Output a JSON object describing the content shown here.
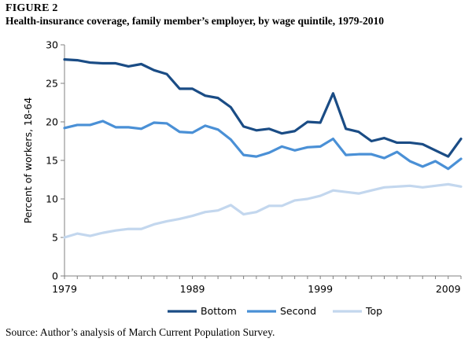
{
  "figure": {
    "label": "FIGURE 2",
    "title": "Health-insurance coverage, family member’s employer, by wage quintile, 1979-2010",
    "source": "Source: Author’s analysis of March Current Population Survey."
  },
  "chart_data": {
    "type": "line",
    "title": "",
    "xlabel": "",
    "ylabel": "Percent of workers, 18-64",
    "xlim": [
      1979,
      2010
    ],
    "ylim": [
      0,
      30
    ],
    "x_ticks": [
      "1979",
      "1989",
      "1999",
      "2009"
    ],
    "y_ticks": [
      "0",
      "5",
      "10",
      "15",
      "20",
      "25",
      "30"
    ],
    "grid": false,
    "legend_position": "bottom",
    "x": [
      1979,
      1980,
      1981,
      1982,
      1983,
      1984,
      1985,
      1986,
      1987,
      1988,
      1989,
      1990,
      1991,
      1992,
      1993,
      1994,
      1995,
      1996,
      1997,
      1998,
      1999,
      2000,
      2001,
      2002,
      2003,
      2004,
      2005,
      2006,
      2007,
      2008,
      2009,
      2010
    ],
    "series": [
      {
        "name": "Bottom",
        "color": "#1a4c85",
        "values": [
          28.1,
          28.0,
          27.7,
          27.6,
          27.6,
          27.2,
          27.5,
          26.7,
          26.2,
          24.3,
          24.3,
          23.4,
          23.1,
          21.9,
          19.4,
          18.9,
          19.1,
          18.5,
          18.8,
          20.0,
          19.9,
          23.7,
          19.1,
          18.7,
          17.5,
          17.9,
          17.3,
          17.3,
          17.1,
          16.3,
          15.5,
          17.8
        ]
      },
      {
        "name": "Second",
        "color": "#4a90d6",
        "values": [
          19.2,
          19.6,
          19.6,
          20.1,
          19.3,
          19.3,
          19.1,
          19.9,
          19.8,
          18.7,
          18.6,
          19.5,
          19.0,
          17.7,
          15.7,
          15.5,
          16.0,
          16.8,
          16.3,
          16.7,
          16.8,
          17.8,
          15.7,
          15.8,
          15.8,
          15.3,
          16.1,
          14.9,
          14.2,
          14.9,
          13.9,
          15.2
        ]
      },
      {
        "name": "Top",
        "color": "#c3d7ee",
        "values": [
          5.0,
          5.5,
          5.2,
          5.6,
          5.9,
          6.1,
          6.1,
          6.7,
          7.1,
          7.4,
          7.8,
          8.3,
          8.5,
          9.2,
          8.0,
          8.3,
          9.1,
          9.1,
          9.8,
          10.0,
          10.4,
          11.1,
          10.9,
          10.7,
          11.1,
          11.5,
          11.6,
          11.7,
          11.5,
          11.7,
          11.9,
          11.6
        ]
      }
    ]
  }
}
